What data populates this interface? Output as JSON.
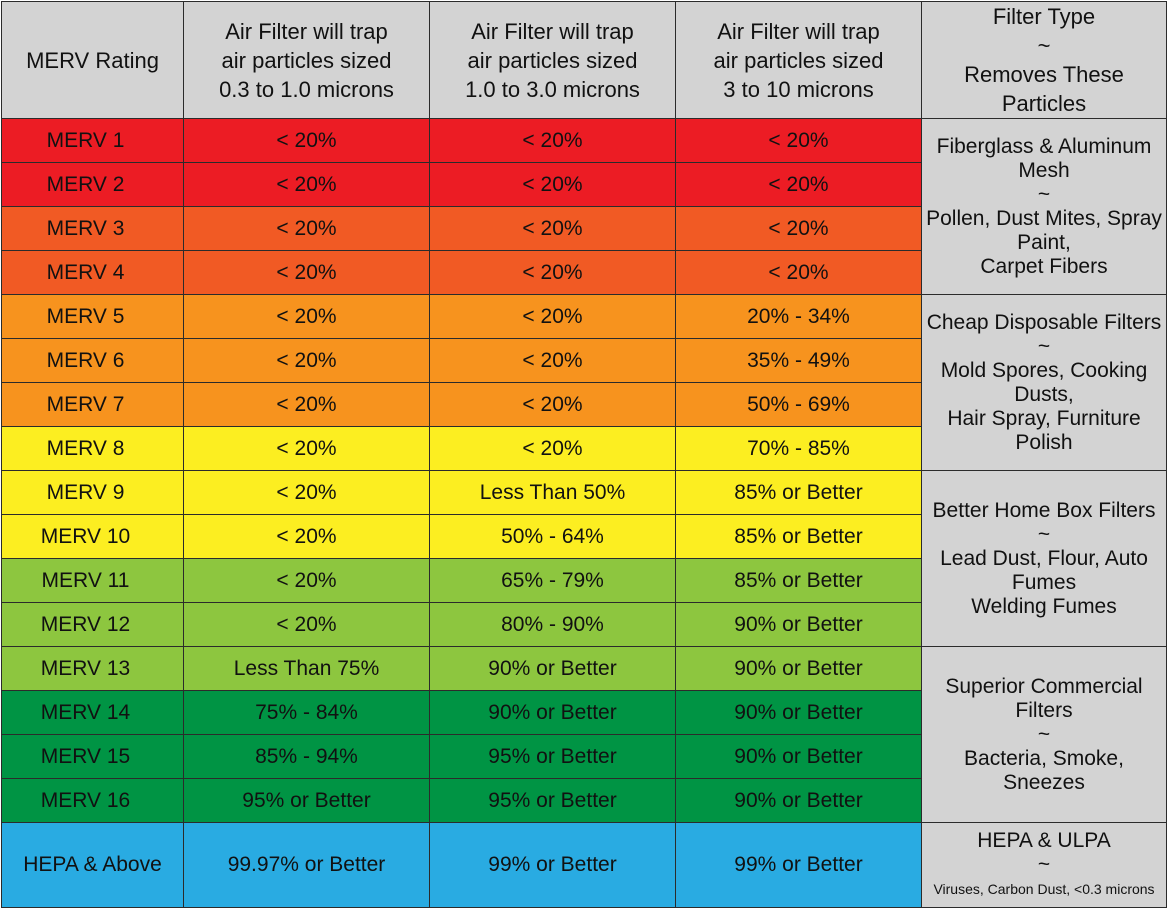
{
  "headers": {
    "rating": "MERV Rating",
    "col1": [
      "Air Filter will trap",
      "air particles sized",
      "0.3 to 1.0 microns"
    ],
    "col2": [
      "Air Filter will trap",
      "air particles sized",
      "1.0 to 3.0 microns"
    ],
    "col3": [
      "Air Filter will trap",
      "air particles sized",
      "3 to 10 microns"
    ],
    "type": [
      "Filter Type",
      "~",
      "Removes These Particles"
    ]
  },
  "colors": {
    "red": "#ec1c24",
    "orange_red": "#f15a24",
    "orange": "#f7931e",
    "yellow": "#fcee21",
    "light_green": "#8dc63f",
    "green": "#009444",
    "blue": "#29abe2",
    "header_gray": "#d3d3d3"
  },
  "rows": [
    {
      "rating": "MERV 1",
      "c1": "< 20%",
      "c2": "< 20%",
      "c3": "< 20%",
      "color": "red"
    },
    {
      "rating": "MERV 2",
      "c1": "< 20%",
      "c2": "< 20%",
      "c3": "< 20%",
      "color": "red"
    },
    {
      "rating": "MERV 3",
      "c1": "< 20%",
      "c2": "< 20%",
      "c3": "< 20%",
      "color": "orange_red"
    },
    {
      "rating": "MERV 4",
      "c1": "< 20%",
      "c2": "< 20%",
      "c3": "< 20%",
      "color": "orange_red"
    },
    {
      "rating": "MERV 5",
      "c1": "< 20%",
      "c2": "< 20%",
      "c3": "20% - 34%",
      "color": "orange"
    },
    {
      "rating": "MERV 6",
      "c1": "< 20%",
      "c2": "< 20%",
      "c3": "35% - 49%",
      "color": "orange"
    },
    {
      "rating": "MERV 7",
      "c1": "< 20%",
      "c2": "< 20%",
      "c3": "50% - 69%",
      "color": "orange"
    },
    {
      "rating": "MERV 8",
      "c1": "< 20%",
      "c2": "< 20%",
      "c3": "70% - 85%",
      "color": "yellow"
    },
    {
      "rating": "MERV 9",
      "c1": "< 20%",
      "c2": "Less Than 50%",
      "c3": "85% or Better",
      "color": "yellow"
    },
    {
      "rating": "MERV 10",
      "c1": "< 20%",
      "c2": "50% - 64%",
      "c3": "85% or Better",
      "color": "yellow"
    },
    {
      "rating": "MERV 11",
      "c1": "< 20%",
      "c2": "65% - 79%",
      "c3": "85% or Better",
      "color": "light_green"
    },
    {
      "rating": "MERV 12",
      "c1": "< 20%",
      "c2": "80% - 90%",
      "c3": "90% or Better",
      "color": "light_green"
    },
    {
      "rating": "MERV 13",
      "c1": "Less Than 75%",
      "c2": "90% or Better",
      "c3": "90% or Better",
      "color": "light_green"
    },
    {
      "rating": "MERV 14",
      "c1": "75% - 84%",
      "c2": "90% or Better",
      "c3": "90% or Better",
      "color": "green"
    },
    {
      "rating": "MERV 15",
      "c1": "85% - 94%",
      "c2": "95% or Better",
      "c3": "90% or Better",
      "color": "green"
    },
    {
      "rating": "MERV 16",
      "c1": "95% or Better",
      "c2": "95% or Better",
      "c3": "90% or Better",
      "color": "green"
    },
    {
      "rating": "HEPA & Above",
      "c1": "99.97% or Better",
      "c2": "99% or Better",
      "c3": "99% or Better",
      "color": "blue"
    }
  ],
  "filter_types": [
    {
      "name": "Fiberglass & Aluminum Mesh",
      "sep": "~",
      "particles": [
        "Pollen, Dust Mites, Spray Paint,",
        "Carpet Fibers"
      ]
    },
    {
      "name": "Cheap Disposable Filters",
      "sep": "~",
      "particles": [
        "Mold Spores, Cooking Dusts,",
        "Hair Spray, Furniture Polish"
      ]
    },
    {
      "name": "Better Home Box Filters",
      "sep": "~",
      "particles": [
        "Lead Dust, Flour, Auto Fumes",
        "Welding Fumes"
      ]
    },
    {
      "name": "Superior Commercial Filters",
      "sep": "~",
      "particles": [
        "Bacteria, Smoke, Sneezes"
      ]
    },
    {
      "name": "HEPA & ULPA",
      "sep": "~",
      "particles": [
        "Viruses, Carbon Dust, <0.3 microns"
      ]
    }
  ]
}
